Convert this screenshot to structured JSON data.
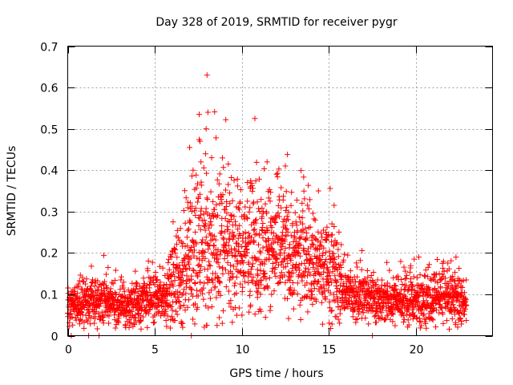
{
  "chart_data": {
    "type": "scatter",
    "title": "Day 328 of 2019, SRMTID for receiver pygr",
    "xlabel": "GPS time / hours",
    "ylabel": "SRMTID / TECUs",
    "xlim": [
      0,
      24.4
    ],
    "ylim": [
      0,
      0.7
    ],
    "x_ticks": [
      0,
      5,
      10,
      15,
      20
    ],
    "x_tick_labels": [
      "0",
      "5",
      "10",
      "15",
      "20"
    ],
    "y_ticks": [
      0,
      0.1,
      0.2,
      0.3,
      0.4,
      0.5,
      0.6,
      0.7
    ],
    "y_tick_labels": [
      "0",
      "0.1",
      "0.2",
      "0.3",
      "0.4",
      "0.5",
      "0.6",
      "0.7"
    ],
    "grid": true,
    "marker": "plus",
    "marker_color": "#ff0000",
    "x_range": [
      0,
      22.9
    ],
    "profile": [
      {
        "x": 0.0,
        "median": 0.075,
        "spread": 0.025
      },
      {
        "x": 2.0,
        "median": 0.085,
        "spread": 0.025
      },
      {
        "x": 3.0,
        "median": 0.065,
        "spread": 0.022
      },
      {
        "x": 4.5,
        "median": 0.09,
        "spread": 0.03
      },
      {
        "x": 5.5,
        "median": 0.085,
        "spread": 0.03
      },
      {
        "x": 6.5,
        "median": 0.15,
        "spread": 0.06
      },
      {
        "x": 8.0,
        "median": 0.2,
        "spread": 0.09
      },
      {
        "x": 10.0,
        "median": 0.2,
        "spread": 0.07
      },
      {
        "x": 11.5,
        "median": 0.21,
        "spread": 0.07
      },
      {
        "x": 13.5,
        "median": 0.18,
        "spread": 0.06
      },
      {
        "x": 15.3,
        "median": 0.14,
        "spread": 0.06
      },
      {
        "x": 16.0,
        "median": 0.1,
        "spread": 0.03
      },
      {
        "x": 18.0,
        "median": 0.085,
        "spread": 0.025
      },
      {
        "x": 20.0,
        "median": 0.085,
        "spread": 0.03
      },
      {
        "x": 22.0,
        "median": 0.09,
        "spread": 0.035
      },
      {
        "x": 22.9,
        "median": 0.07,
        "spread": 0.02
      }
    ],
    "notable_points": [
      {
        "x": 8.0,
        "y": 0.63
      },
      {
        "x": 7.55,
        "y": 0.535
      },
      {
        "x": 8.05,
        "y": 0.54
      },
      {
        "x": 7.95,
        "y": 0.5
      },
      {
        "x": 7.6,
        "y": 0.47
      },
      {
        "x": 7.0,
        "y": 0.455
      },
      {
        "x": 7.65,
        "y": 0.42
      },
      {
        "x": 7.2,
        "y": 0.4
      },
      {
        "x": 11.45,
        "y": 0.42
      },
      {
        "x": 12.5,
        "y": 0.41
      },
      {
        "x": 14.4,
        "y": 0.35
      },
      {
        "x": 15.3,
        "y": 0.315
      },
      {
        "x": 10.5,
        "y": 0.36
      },
      {
        "x": 9.3,
        "y": 0.345
      },
      {
        "x": 6.05,
        "y": 0.275
      },
      {
        "x": 19.9,
        "y": 0.185
      },
      {
        "x": 22.3,
        "y": 0.19
      },
      {
        "x": 0.2,
        "y": 0.0
      },
      {
        "x": 1.2,
        "y": 0.0
      },
      {
        "x": 1.8,
        "y": 0.0
      },
      {
        "x": 7.1,
        "y": 0.0
      },
      {
        "x": 17.5,
        "y": 0.0
      },
      {
        "x": 6.6,
        "y": 0.02
      }
    ],
    "point_count": 2600
  }
}
